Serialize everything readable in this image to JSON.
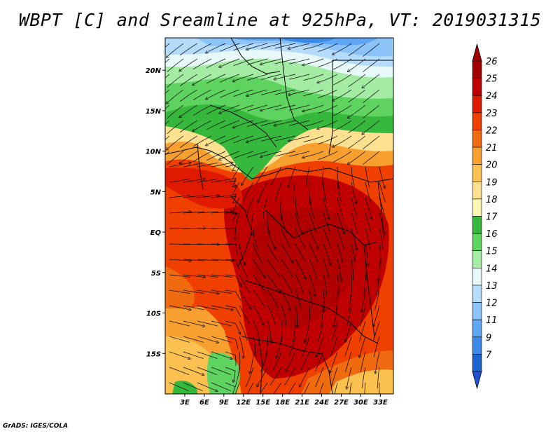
{
  "title": "WBPT [C] and Sreamline at 925hPa, VT: 2019031315",
  "credit": "GrADS: IGES/COLA",
  "map": {
    "region": "Central Africa",
    "lon_range": [
      0,
      35
    ],
    "lat_range": [
      -20,
      24
    ],
    "lon_ticks": [
      {
        "lon": 3,
        "label": "3E"
      },
      {
        "lon": 6,
        "label": "6E"
      },
      {
        "lon": 9,
        "label": "9E"
      },
      {
        "lon": 12,
        "label": "12E"
      },
      {
        "lon": 15,
        "label": "15E"
      },
      {
        "lon": 18,
        "label": "18E"
      },
      {
        "lon": 21,
        "label": "21E"
      },
      {
        "lon": 24,
        "label": "24E"
      },
      {
        "lon": 27,
        "label": "27E"
      },
      {
        "lon": 30,
        "label": "30E"
      },
      {
        "lon": 33,
        "label": "33E"
      }
    ],
    "lat_ticks": [
      {
        "lat": 20,
        "label": "20N"
      },
      {
        "lat": 15,
        "label": "15N"
      },
      {
        "lat": 10,
        "label": "10N"
      },
      {
        "lat": 5,
        "label": "5N"
      },
      {
        "lat": 0,
        "label": "EQ"
      },
      {
        "lat": -5,
        "label": "5S"
      },
      {
        "lat": -10,
        "label": "10S"
      },
      {
        "lat": -15,
        "label": "15S"
      }
    ]
  },
  "colorbar": {
    "levels": [
      {
        "label": "26",
        "color": "#a50000"
      },
      {
        "label": "25",
        "color": "#c00000"
      },
      {
        "label": "24",
        "color": "#e01a00"
      },
      {
        "label": "23",
        "color": "#f04000"
      },
      {
        "label": "22",
        "color": "#f06a10"
      },
      {
        "label": "21",
        "color": "#f7a030"
      },
      {
        "label": "20",
        "color": "#fac050"
      },
      {
        "label": "19",
        "color": "#fde090"
      },
      {
        "label": "18",
        "color": "#fef5b0"
      },
      {
        "label": "17",
        "color": "#36b83c"
      },
      {
        "label": "16",
        "color": "#5fd35f"
      },
      {
        "label": "15",
        "color": "#a4eba4"
      },
      {
        "label": "14",
        "color": "#e6f8f8"
      },
      {
        "label": "13",
        "color": "#b4dcfa"
      },
      {
        "label": "12",
        "color": "#8cc4fa"
      },
      {
        "label": "11",
        "color": "#5ea6f6"
      },
      {
        "label": "9",
        "color": "#3c8ae8"
      },
      {
        "label": "7",
        "color": "#1e64d0"
      }
    ],
    "top_arrow_color": "#a50000",
    "bottom_arrow_color": "#1e50d2"
  }
}
